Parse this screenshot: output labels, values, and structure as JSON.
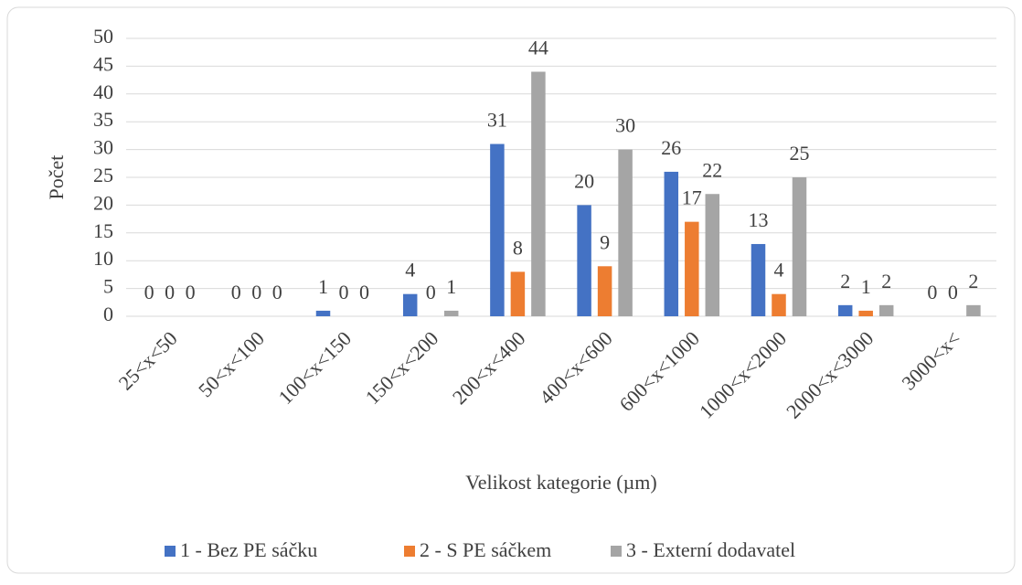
{
  "chart_data": {
    "type": "bar",
    "categories": [
      "25<x<50",
      "50<x<100",
      "100<x<150",
      "150<x<200",
      "200<x<400",
      "400<x<600",
      "600<x<1000",
      "1000<x<2000",
      "2000<x<3000",
      "3000<x<"
    ],
    "series": [
      {
        "name": "1 - Bez PE sáčku",
        "color": "#4472c4",
        "values": [
          0,
          0,
          1,
          4,
          31,
          20,
          26,
          13,
          2,
          0
        ]
      },
      {
        "name": "2 - S PE sáčkem",
        "color": "#ed7d31",
        "values": [
          0,
          0,
          0,
          0,
          8,
          9,
          17,
          4,
          1,
          0
        ]
      },
      {
        "name": "3 - Externí dodavatel",
        "color": "#a5a5a5",
        "values": [
          0,
          0,
          0,
          1,
          44,
          30,
          22,
          25,
          2,
          2
        ]
      }
    ],
    "xlabel": "Velikost kategorie (µm)",
    "ylabel": "Počet",
    "ylim": [
      0,
      50
    ],
    "yticks": [
      0,
      5,
      10,
      15,
      20,
      25,
      30,
      35,
      40,
      45,
      50
    ],
    "grid": true,
    "legend": "bottom"
  }
}
